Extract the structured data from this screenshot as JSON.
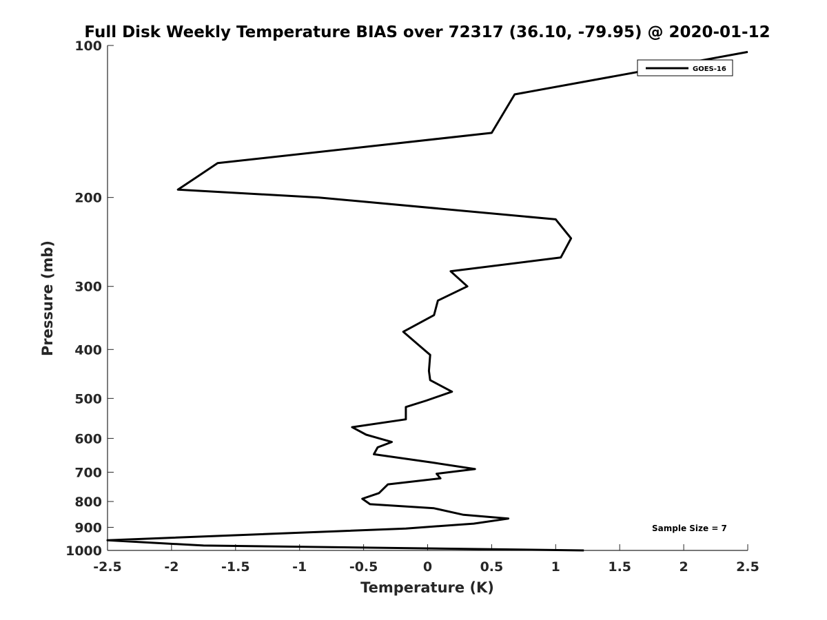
{
  "chart_data": {
    "type": "line",
    "title": "Full Disk Weekly Temperature BIAS over 72317 (36.10, -79.95) @ 2020-01-12",
    "xlabel": "Temperature (K)",
    "ylabel": "Pressure (mb)",
    "xlim": [
      -2.5,
      2.5
    ],
    "ylim": [
      100,
      1000
    ],
    "yscale": "log",
    "yreversed": true,
    "grid": false,
    "legend_position": "top-right",
    "xticks": [
      "-2.5",
      "-2",
      "-1.5",
      "-1",
      "-0.5",
      "0",
      "0.5",
      "1",
      "1.5",
      "2",
      "2.5"
    ],
    "yticks": [
      "100",
      "200",
      "300",
      "400",
      "500",
      "600",
      "700",
      "800",
      "900",
      "1000"
    ],
    "series": [
      {
        "name": "GOES-16",
        "color": "#000000",
        "points": [
          [
            2.5,
            103
          ],
          [
            0.68,
            125
          ],
          [
            0.5,
            149
          ],
          [
            -1.64,
            171
          ],
          [
            -1.95,
            193
          ],
          [
            -0.85,
            200
          ],
          [
            1.0,
            221
          ],
          [
            1.12,
            241
          ],
          [
            1.04,
            263
          ],
          [
            0.18,
            280
          ],
          [
            0.31,
            300
          ],
          [
            0.08,
            320
          ],
          [
            0.05,
            342
          ],
          [
            -0.19,
            369
          ],
          [
            -0.08,
            390
          ],
          [
            0.02,
            410
          ],
          [
            0.01,
            441
          ],
          [
            0.02,
            460
          ],
          [
            0.19,
            485
          ],
          [
            -0.01,
            505
          ],
          [
            -0.17,
            520
          ],
          [
            -0.17,
            550
          ],
          [
            -0.59,
            570
          ],
          [
            -0.48,
            590
          ],
          [
            -0.28,
            610
          ],
          [
            -0.39,
            625
          ],
          [
            -0.42,
            645
          ],
          [
            0.04,
            670
          ],
          [
            0.37,
            690
          ],
          [
            0.07,
            705
          ],
          [
            0.1,
            720
          ],
          [
            -0.31,
            740
          ],
          [
            -0.38,
            770
          ],
          [
            -0.51,
            790
          ],
          [
            -0.45,
            810
          ],
          [
            0.05,
            825
          ],
          [
            0.28,
            850
          ],
          [
            0.63,
            865
          ],
          [
            0.36,
            885
          ],
          [
            -0.17,
            905
          ],
          [
            -2.5,
            955
          ],
          [
            -1.75,
            978
          ],
          [
            1.22,
            1000
          ]
        ]
      }
    ],
    "annotations": [
      "Sample Size = 7"
    ]
  }
}
